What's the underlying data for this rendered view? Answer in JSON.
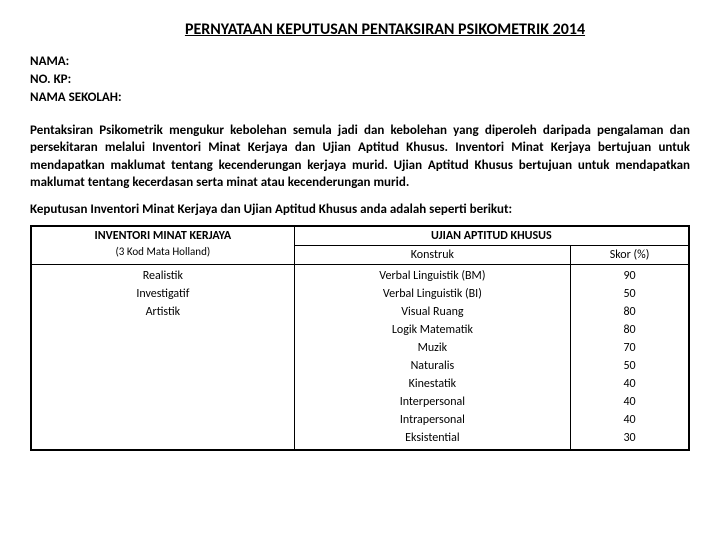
{
  "title": "PERNYATAAN KEPUTUSAN PENTAKSIRAN PSIKOMETRIK  2014",
  "identity": {
    "nama_label": "NAMA:",
    "nokp_label": "NO. KP:",
    "sekolah_label": "NAMA SEKOLAH:"
  },
  "description": "Pentaksiran Psikometrik mengukur kebolehan semula jadi dan kebolehan yang diperoleh daripada pengalaman dan persekitaran melalui Inventori Minat Kerjaya dan Ujian Aptitud Khusus. Inventori Minat Kerjaya bertujuan untuk mendapatkan maklumat tentang kecenderungan kerjaya murid. Ujian Aptitud Khusus bertujuan untuk mendapatkan maklumat tentang kecerdasan serta minat atau kecenderungan murid.",
  "intro": "Keputusan Inventori Minat Kerjaya dan Ujian Aptitud Khusus anda adalah seperti berikut:",
  "table": {
    "left_header": "INVENTORI MINAT KERJAYA",
    "left_sub": "(3 Kod Mata Holland)",
    "right_header": "UJIAN APTITUD KHUSUS",
    "konstruk_header": "Konstruk",
    "skor_header": "Skor (%)",
    "holland": [
      "Realistik",
      "Investigatif",
      "Artistik"
    ],
    "konstruk": [
      "Verbal Linguistik (BM)",
      "Verbal Linguistik (BI)",
      "Visual Ruang",
      "Logik Matematik",
      "Muzik",
      "Naturalis",
      "Kinestatik",
      "Interpersonal",
      "Intrapersonal",
      "Eksistential"
    ],
    "skor": [
      90,
      50,
      80,
      80,
      70,
      50,
      40,
      40,
      40,
      30
    ]
  }
}
